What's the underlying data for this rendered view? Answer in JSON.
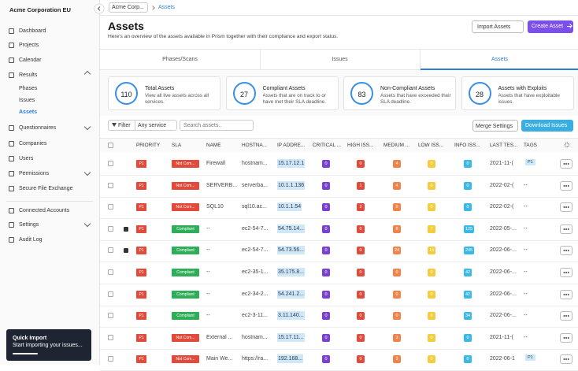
{
  "sidebar": {
    "org": "Acme Corporation EU",
    "nav": [
      "Dashboard",
      "Projects",
      "Calendar",
      "Results",
      "Phases",
      "Issues",
      "Assets",
      "Questionnaires",
      "Companies",
      "Users",
      "Permissions",
      "Secure File Exchange",
      "Connected Accounts",
      "Settings",
      "Audit Log"
    ],
    "quick_import": {
      "title": "Quick Import",
      "text": "Start importing your issues..."
    }
  },
  "breadcrumb": [
    "Acme Corp...",
    "Assets"
  ],
  "header": {
    "title": "Assets",
    "subtitle": "Here's an overview of the assets available in Prism together with their compliance and export status.",
    "buttons": [
      "Import Assets",
      "Create Asset"
    ]
  },
  "tabs": [
    "Phases/Scans",
    "Issues",
    "Assets"
  ],
  "stats": [
    {
      "value": "110",
      "label": "Total Assets",
      "description": "View all live assets across all services."
    },
    {
      "value": "27",
      "label": "Compliant Assets",
      "description": "Assets that are on track to or have met their SLA deadline."
    },
    {
      "value": "83",
      "label": "Non-Compliant Assets",
      "description": "Assets that have exceeded their SLA deadline."
    },
    {
      "value": "28",
      "label": "Assets with Exploits",
      "description": "Assets that have exploitable issues."
    }
  ],
  "toolbar": {
    "filter": "Filter",
    "service": "Any service",
    "search": "Search assets..",
    "buttons": [
      "Merge Settings",
      "Download Issues"
    ]
  },
  "table": {
    "columns": [
      "PRIORITY",
      "SLA",
      "NAME",
      "HOSTNA...",
      "IP ADDRE...",
      "CRITICAL ...",
      "HIGH ISS...",
      "MEDIUM ...",
      "LOW ISS...",
      "INFO ISS...",
      "LAST TES...",
      "TAGS"
    ],
    "rows": [
      [
        "P1",
        "Not Com...",
        "Firewall",
        "hostnam...",
        "15.17.12.1",
        0,
        0,
        4,
        0,
        0,
        "2021-11-(",
        "P1"
      ],
      [
        "P1",
        "Not Com...",
        "SERVERB...",
        "serverba...",
        "10.1.1.136",
        0,
        1,
        4,
        0,
        0,
        "2022-02-(",
        "--"
      ],
      [
        "P1",
        "Not Com...",
        "SQL10",
        "sql10.ac...",
        "10.1.1.54",
        0,
        2,
        0,
        0,
        0,
        "2022-02-(",
        "--"
      ],
      [
        "P1",
        "Compliant",
        "--",
        "ec2-54-7...",
        "54.75.14...",
        0,
        0,
        8,
        7,
        125,
        "2022-05-...",
        "--"
      ],
      [
        "P1",
        "Compliant",
        "--",
        "ec2-54-7...",
        "54.73.56...",
        0,
        0,
        24,
        14,
        245,
        "2022-06-...",
        "--"
      ],
      [
        "P1",
        "Compliant",
        "--",
        "ec2-35-1...",
        "35.175.8...",
        0,
        0,
        0,
        0,
        42,
        "2022-06-...",
        "--"
      ],
      [
        "P1",
        "Compliant",
        "--",
        "ec2-34-2...",
        "54.241.2...",
        0,
        0,
        0,
        0,
        42,
        "2022-06-...",
        "--"
      ],
      [
        "P1",
        "Compliant",
        "--",
        "ec2-3-11...",
        "3.11.140...",
        0,
        0,
        0,
        0,
        34,
        "2022-06-...",
        "--"
      ],
      [
        "P1",
        "Not Com...",
        "External ...",
        "hostnam...",
        "15.17.11...",
        0,
        0,
        3,
        0,
        0,
        "2021-11-(",
        "--"
      ],
      [
        "P1",
        "Not Com...",
        "Main We...",
        "https://ra...",
        "192.168...",
        0,
        0,
        3,
        0,
        0,
        "2022-06-1",
        "P1"
      ]
    ],
    "icon_rows": [
      3,
      4
    ]
  }
}
